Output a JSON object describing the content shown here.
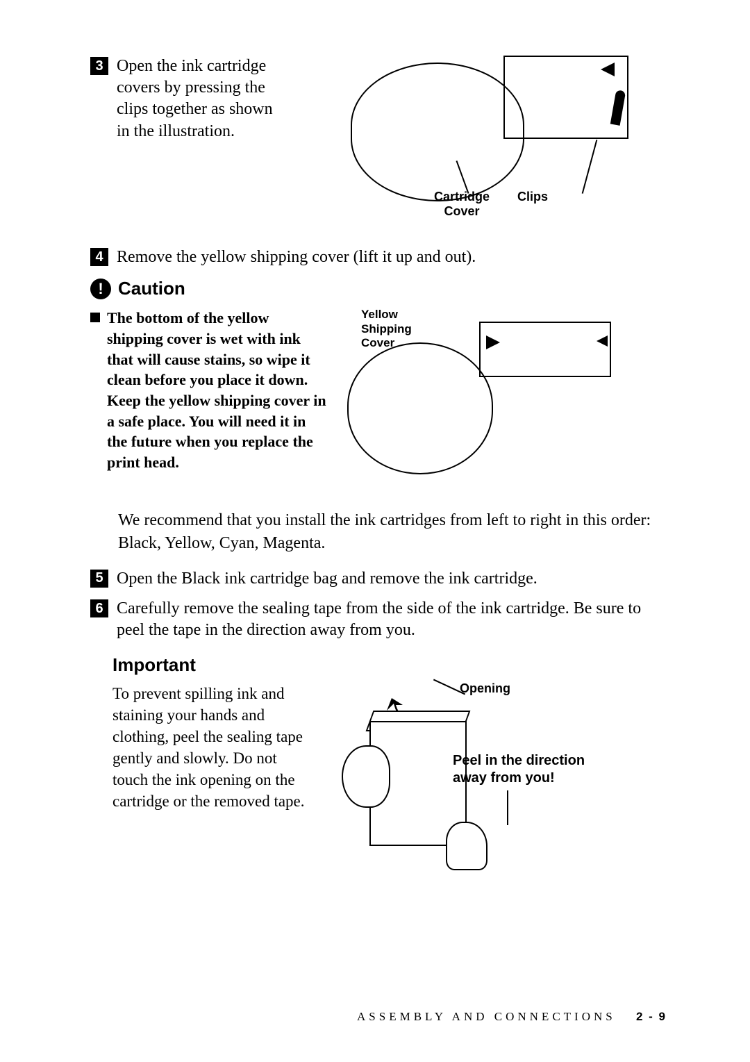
{
  "step3": {
    "num": "3",
    "text": "Open the ink cartridge covers by pressing the clips together as shown in the illustration."
  },
  "illus1": {
    "label_cartridge": "Cartridge Cover",
    "label_clips": "Clips"
  },
  "step4": {
    "num": "4",
    "text": "Remove the yellow shipping cover (lift it up and out)."
  },
  "caution": {
    "title": "Caution",
    "bullet": "The bottom of the yellow shipping cover is wet with ink that will cause stains, so wipe it clean before you place it down. Keep the yellow shipping cover in a safe place. You will need it in the future when you replace the print head."
  },
  "illus2": {
    "yellow_label": "Yellow Shipping Cover"
  },
  "recommend": "We recommend that you install the ink cartridges from left to right in this order: Black, Yellow, Cyan, Magenta.",
  "step5": {
    "num": "5",
    "text": "Open the Black ink cartridge bag and remove the ink cartridge."
  },
  "step6": {
    "num": "6",
    "text": "Carefully remove the sealing tape from the side of the ink cartridge. Be sure to peel the tape in the direction away from you."
  },
  "important": {
    "title": "Important",
    "text": "To prevent spilling ink and staining your hands and clothing, peel the sealing tape gently and slowly. Do not touch the ink opening on the cartridge or the removed tape."
  },
  "illus3": {
    "opening": "Opening",
    "peel": "Peel in the direction away from you!"
  },
  "footer": {
    "section": "ASSEMBLY AND CONNECTIONS",
    "page": "2 - 9"
  }
}
